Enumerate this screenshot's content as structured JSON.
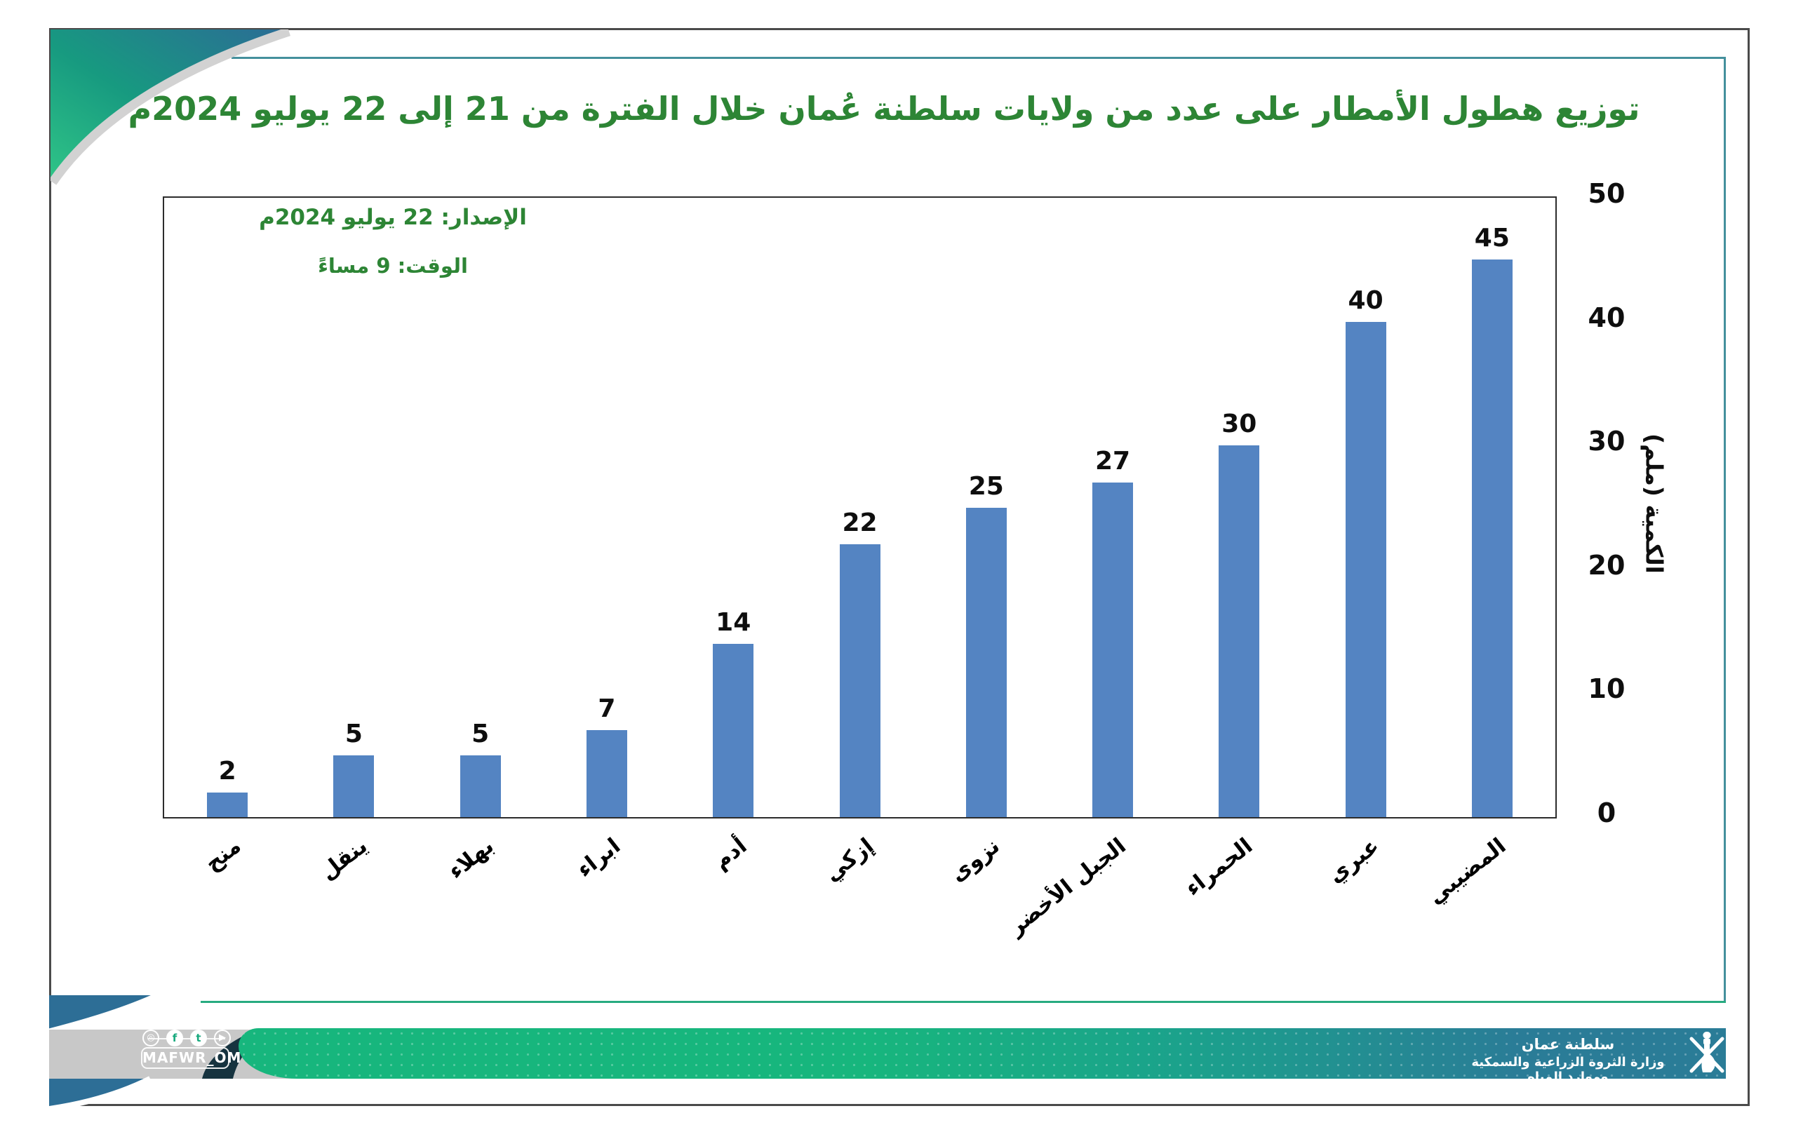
{
  "header": {
    "title": "توزيع هطول الأمطار على عدد من ولايات سلطنة عُمان خلال الفترة من 21 إلى 22 يوليو 2024م",
    "title_color": "#2d8535"
  },
  "annotations": {
    "release": "الإصدار: 22 يوليو 2024م",
    "time": "الوقت: 9 مساءً"
  },
  "chart_data": {
    "type": "bar",
    "title": "توزيع هطول الأمطار على عدد من ولايات سلطنة عُمان خلال الفترة من 21 إلى 22 يوليو 2024م",
    "categories": [
      "منح",
      "ينقل",
      "بهلاء",
      "ابراء",
      "أدم",
      "إزكي",
      "نزوى",
      "الجبل الأخضر",
      "الحمراء",
      "عبري",
      "المضيبي"
    ],
    "values": [
      2,
      5,
      5,
      7,
      14,
      22,
      25,
      27,
      30,
      40,
      45
    ],
    "xlabel": "",
    "ylabel": "الكمية (ملم)",
    "ylim": [
      0,
      50
    ],
    "yticks": [
      0,
      10,
      20,
      30,
      40,
      50
    ],
    "grid": false,
    "legend": null,
    "bar_color": "#5484c2",
    "value_labels_shown": true
  },
  "footer": {
    "social_handle": "MAFWR_OM",
    "social_icons": [
      "instagram-icon",
      "facebook-icon",
      "twitter-icon",
      "youtube-icon"
    ],
    "ministry_line1": "سلطنة عمان",
    "ministry_line2": "وزارة الثروة الزراعية والسمكية وموارد المياه",
    "band_green": "#17b67d",
    "band_blue": "#2a7c97"
  }
}
